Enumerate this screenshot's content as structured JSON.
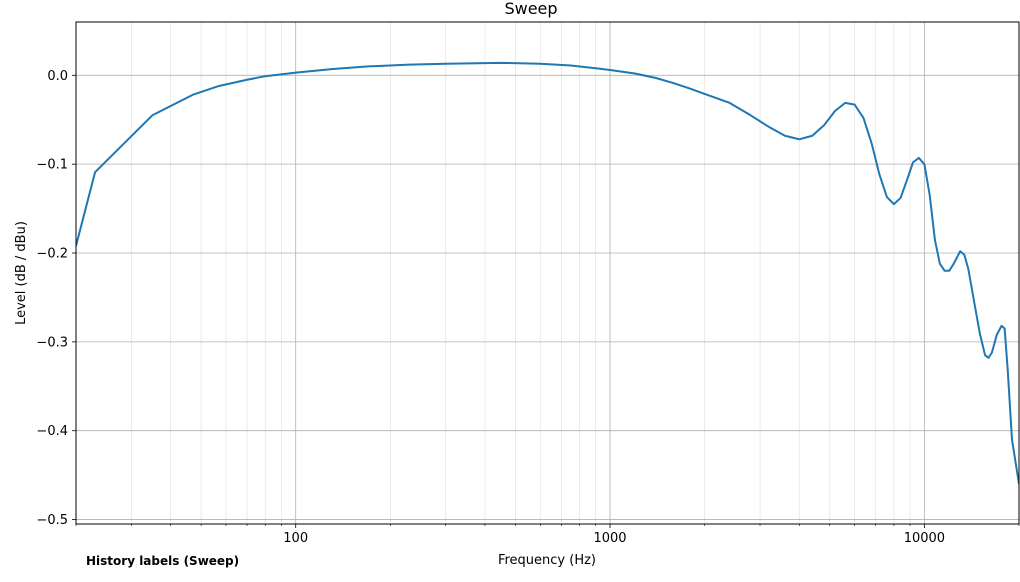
{
  "chart_data": {
    "type": "line",
    "title": "Sweep",
    "xlabel": "Frequency (Hz)",
    "ylabel": "Level (dB / dBu)",
    "xscale": "log",
    "xlim": [
      20,
      20000
    ],
    "ylim": [
      -0.505,
      0.06
    ],
    "x_ticks": [
      100,
      1000,
      10000
    ],
    "x_tick_labels": [
      "100",
      "1000",
      "10000"
    ],
    "y_ticks": [
      0.0,
      -0.1,
      -0.2,
      -0.3,
      -0.4,
      -0.5
    ],
    "y_tick_labels": [
      "0.0",
      "−0.1",
      "−0.2",
      "−0.3",
      "−0.4",
      "−0.5"
    ],
    "grid": true,
    "series": [
      {
        "color": "#1f77b4",
        "points": [
          [
            20,
            -0.192
          ],
          [
            23,
            -0.109
          ],
          [
            35,
            -0.045
          ],
          [
            47,
            -0.022
          ],
          [
            57,
            -0.012
          ],
          [
            70,
            -0.005
          ],
          [
            80,
            -0.001
          ],
          [
            100,
            0.003
          ],
          [
            130,
            0.007
          ],
          [
            170,
            0.01
          ],
          [
            230,
            0.012
          ],
          [
            300,
            0.013
          ],
          [
            450,
            0.014
          ],
          [
            600,
            0.013
          ],
          [
            750,
            0.011
          ],
          [
            900,
            0.008
          ],
          [
            1000,
            0.006
          ],
          [
            1200,
            0.002
          ],
          [
            1400,
            -0.003
          ],
          [
            1600,
            -0.009
          ],
          [
            1800,
            -0.015
          ],
          [
            2000,
            -0.021
          ],
          [
            2400,
            -0.031
          ],
          [
            2800,
            -0.045
          ],
          [
            3200,
            -0.058
          ],
          [
            3600,
            -0.068
          ],
          [
            4000,
            -0.072
          ],
          [
            4400,
            -0.068
          ],
          [
            4800,
            -0.056
          ],
          [
            5200,
            -0.04
          ],
          [
            5600,
            -0.031
          ],
          [
            6000,
            -0.033
          ],
          [
            6400,
            -0.048
          ],
          [
            6800,
            -0.077
          ],
          [
            7200,
            -0.112
          ],
          [
            7600,
            -0.137
          ],
          [
            8000,
            -0.145
          ],
          [
            8400,
            -0.138
          ],
          [
            8800,
            -0.118
          ],
          [
            9200,
            -0.098
          ],
          [
            9600,
            -0.093
          ],
          [
            10000,
            -0.1
          ],
          [
            10400,
            -0.135
          ],
          [
            10800,
            -0.185
          ],
          [
            11200,
            -0.212
          ],
          [
            11600,
            -0.22
          ],
          [
            12000,
            -0.22
          ],
          [
            12400,
            -0.212
          ],
          [
            13000,
            -0.198
          ],
          [
            13400,
            -0.202
          ],
          [
            13800,
            -0.218
          ],
          [
            14400,
            -0.255
          ],
          [
            15000,
            -0.29
          ],
          [
            15600,
            -0.315
          ],
          [
            16000,
            -0.318
          ],
          [
            16400,
            -0.312
          ],
          [
            17000,
            -0.292
          ],
          [
            17600,
            -0.282
          ],
          [
            18000,
            -0.285
          ],
          [
            18400,
            -0.33
          ],
          [
            19000,
            -0.41
          ],
          [
            20000,
            -0.46
          ]
        ]
      }
    ]
  },
  "footer": {
    "history_label": "History labels (Sweep)"
  }
}
